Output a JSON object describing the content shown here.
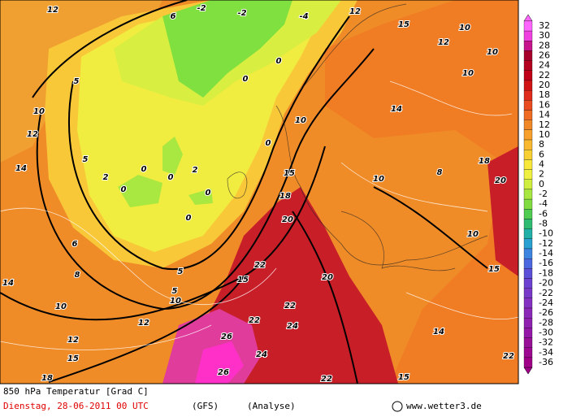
{
  "footer": {
    "title": "850 hPa Temperatur [Grad C]",
    "date": "Dienstag, 28-06-2011  00 UTC",
    "model": "(GFS)",
    "run": "(Analyse)",
    "source": "www.wetter3.de"
  },
  "scale": {
    "labels": [
      "32",
      "30",
      "28",
      "26",
      "24",
      "22",
      "20",
      "18",
      "16",
      "14",
      "12",
      "10",
      "8",
      "6",
      "4",
      "2",
      "0",
      "-2",
      "-4",
      "-6",
      "-8",
      "-10",
      "-12",
      "-14",
      "-16",
      "-18",
      "-20",
      "-22",
      "-24",
      "-26",
      "-28",
      "-30",
      "-32",
      "-34",
      "-36"
    ],
    "colors": [
      "#ff66ff",
      "#f040e0",
      "#c8148c",
      "#a8002c",
      "#b4001e",
      "#c00018",
      "#d01414",
      "#e02c1c",
      "#e84c20",
      "#f06c24",
      "#f08828",
      "#f8a02c",
      "#f8b830",
      "#f8d034",
      "#f8e83c",
      "#f0f040",
      "#d0ee40",
      "#a8e640",
      "#80dc40",
      "#50cc50",
      "#30bc70",
      "#20b0a8",
      "#28a0d0",
      "#3c84e0",
      "#4c68e0",
      "#5c50d8",
      "#6c40d0",
      "#7838c8",
      "#8430c0",
      "#8c28b8",
      "#9020b0",
      "#9418a8",
      "#981098",
      "#9c0890",
      "#a00088"
    ]
  },
  "map": {
    "labels": [
      "12",
      "6",
      "-2",
      "-2",
      "-4",
      "12",
      "15",
      "12",
      "10",
      "10",
      "10",
      "5",
      "10",
      "12",
      "14",
      "5",
      "0",
      "0",
      "0",
      "0",
      "0",
      "2",
      "2",
      "0",
      "0",
      "0",
      "10",
      "15",
      "18",
      "20",
      "10",
      "8",
      "20",
      "10",
      "15",
      "5",
      "5",
      "10",
      "10",
      "15",
      "22",
      "22",
      "24",
      "20",
      "22",
      "26",
      "26",
      "24",
      "15",
      "18",
      "15",
      "22",
      "22",
      "14",
      "12",
      "12",
      "8",
      "6",
      "14",
      "14",
      "18"
    ]
  }
}
